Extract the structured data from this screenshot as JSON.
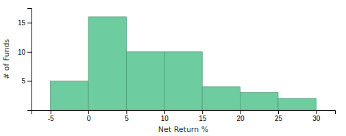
{
  "chart_data": {
    "type": "histogram",
    "xlabel": "Net Return %",
    "ylabel": "# of Funds",
    "bins": [
      -5,
      0,
      5,
      10,
      15,
      20,
      25,
      30
    ],
    "values": [
      5,
      16,
      10,
      10,
      4,
      3,
      2
    ],
    "color": "#6dccA0",
    "xlim": [
      -7.5,
      32.5
    ],
    "xticks": [
      -5,
      0,
      5,
      10,
      15,
      20,
      25,
      30
    ],
    "ylim": [
      0,
      17.5
    ],
    "yticks": [
      5,
      10,
      15
    ],
    "grid": false
  }
}
